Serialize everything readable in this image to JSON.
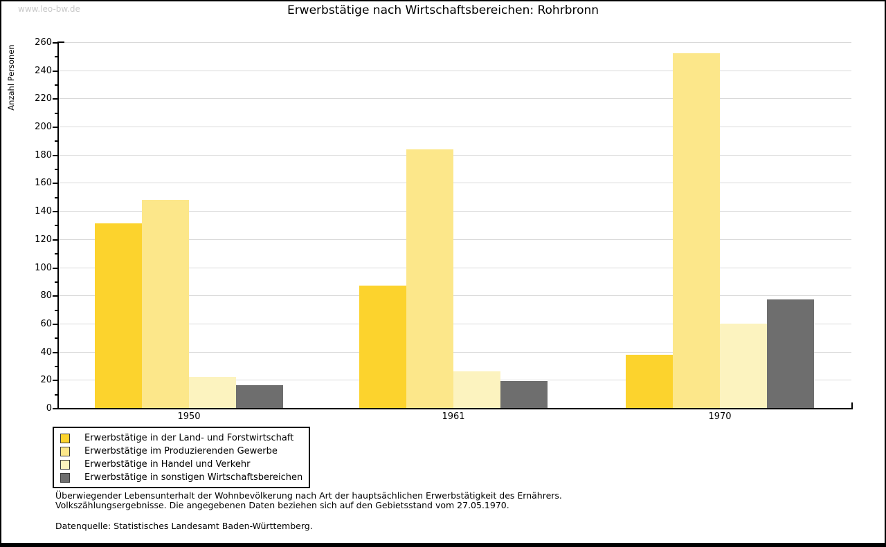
{
  "watermark": "www.leo-bw.de",
  "title": "Erwerbstätige nach Wirtschaftsbereichen: Rohrbronn",
  "chart_data": {
    "type": "bar",
    "title": "Erwerbstätige nach Wirtschaftsbereichen: Rohrbronn",
    "xlabel": "",
    "ylabel": "Anzahl Personen",
    "ylim": [
      0,
      260
    ],
    "ytick_step": 20,
    "grid": true,
    "grid_color": "#d9d9d9",
    "legend_position": "bottom-left",
    "categories": [
      "1950",
      "1961",
      "1970"
    ],
    "series": [
      {
        "name": "Erwerbstätige in der Land- und Forstwirtschaft",
        "color": "#FCD32D",
        "values": [
          131,
          87,
          38
        ]
      },
      {
        "name": "Erwerbstätige im Produzierenden Gewerbe",
        "color": "#FCE78A",
        "values": [
          148,
          184,
          252
        ]
      },
      {
        "name": "Erwerbstätige in Handel und Verkehr",
        "color": "#FCF3BF",
        "values": [
          22,
          26,
          60
        ]
      },
      {
        "name": "Erwerbstätige in sonstigen Wirtschaftsbereichen",
        "color": "#6E6E6E",
        "values": [
          16,
          19,
          77
        ]
      }
    ]
  },
  "footnotes": {
    "line1": "Überwiegender Lebensunterhalt der Wohnbevölkerung nach Art der hauptsächlichen Erwerbstätigkeit des Ernährers.",
    "line2": "Volkszählungsergebnisse. Die angegebenen Daten beziehen sich auf den Gebietsstand vom 27.05.1970.",
    "source": "Datenquelle: Statistisches Landesamt Baden-Württemberg."
  }
}
